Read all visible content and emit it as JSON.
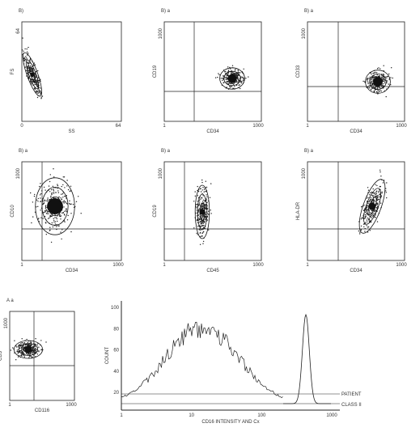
{
  "panels": [
    {
      "label": "B)",
      "ylabel": "FS",
      "xlabel": "SS",
      "xticks": [
        "0",
        "64"
      ],
      "yticks": [
        "64"
      ]
    },
    {
      "label": "B) a",
      "ylabel": "CD19",
      "xlabel": "CD34",
      "xticks": [
        "1",
        "1000"
      ],
      "yticks": [
        "1000"
      ]
    },
    {
      "label": "B) a",
      "ylabel": "CD33",
      "xlabel": "CD34",
      "xticks": [
        "1",
        "1000"
      ],
      "yticks": [
        "1000"
      ]
    },
    {
      "label": "B) a",
      "ylabel": "CD10",
      "xlabel": "CD34",
      "xticks": [
        "1",
        "1000"
      ],
      "yticks": [
        "1000"
      ]
    },
    {
      "label": "B) a",
      "ylabel": "CD19",
      "xlabel": "CD45",
      "xticks": [
        "1",
        "1000"
      ],
      "yticks": [
        "1000"
      ]
    },
    {
      "label": "B) a",
      "ylabel": "HLA-DR",
      "xlabel": "CD34",
      "xticks": [
        "1",
        "1000"
      ],
      "yticks": [
        "1000"
      ]
    },
    {
      "label": "A a",
      "ylabel": "CD3",
      "xlabel": "CD116",
      "xticks": [
        "1",
        "1000"
      ],
      "yticks": [
        "1000"
      ]
    }
  ],
  "histogram": {
    "ylabel": "COUNT",
    "xlabel": "CD16 INTENSITY AND Cx",
    "xticks": [
      "1",
      "10",
      "100",
      "1000"
    ],
    "yticks": [
      "20",
      "40",
      "60",
      "80",
      "100"
    ],
    "legend": [
      "PATIENT",
      "CLASS II"
    ]
  }
}
